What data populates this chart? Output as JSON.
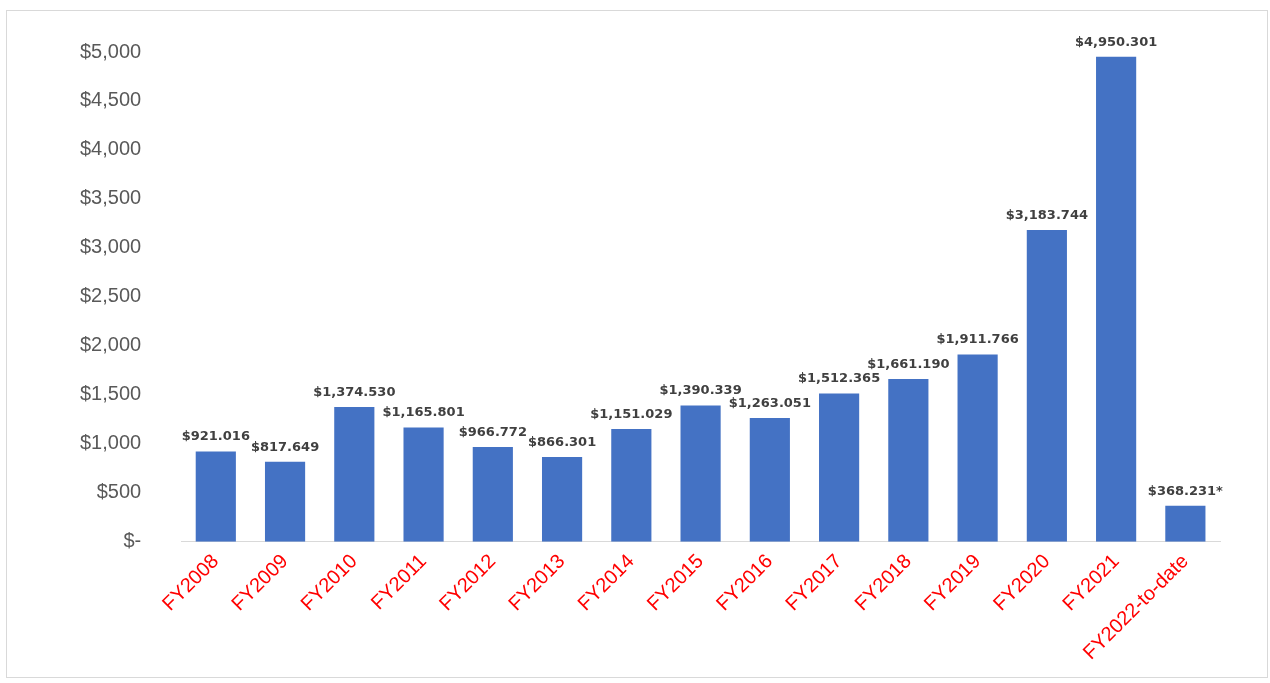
{
  "chart_data": {
    "type": "bar",
    "categories": [
      "FY2008",
      "FY2009",
      "FY2010",
      "FY2011",
      "FY2012",
      "FY2013",
      "FY2014",
      "FY2015",
      "FY2016",
      "FY2017",
      "FY2018",
      "FY2019",
      "FY2020",
      "FY2021",
      "FY2022-to-date"
    ],
    "values": [
      921.016,
      817.649,
      1374.53,
      1165.801,
      966.772,
      866.301,
      1151.029,
      1390.339,
      1263.051,
      1512.365,
      1661.19,
      1911.766,
      3183.744,
      4950.301,
      368.231
    ],
    "value_labels": [
      "$921.016",
      "$817.649",
      "$1,374.530",
      "$1,165.801",
      "$966.772",
      "$866.301",
      "$1,151.029",
      "$1,390.339",
      "$1,263.051",
      "$1,512.365",
      "$1,661.190",
      "$1,911.766",
      "$3,183.744",
      "$4,950.301",
      "$368.231*"
    ],
    "color": "#4472c4",
    "ylim": [
      0,
      5000
    ],
    "yticks": [
      {
        "value": 0,
        "label": "$-"
      },
      {
        "value": 500,
        "label": "$500"
      },
      {
        "value": 1000,
        "label": "$1,000"
      },
      {
        "value": 1500,
        "label": "$1,500"
      },
      {
        "value": 2000,
        "label": "$2,000"
      },
      {
        "value": 2500,
        "label": "$2,500"
      },
      {
        "value": 3000,
        "label": "$3,000"
      },
      {
        "value": 3500,
        "label": "$3,500"
      },
      {
        "value": 4000,
        "label": "$4,000"
      },
      {
        "value": 4500,
        "label": "$4,500"
      },
      {
        "value": 5000,
        "label": "$5,000"
      }
    ],
    "grid": false,
    "legend": false
  }
}
